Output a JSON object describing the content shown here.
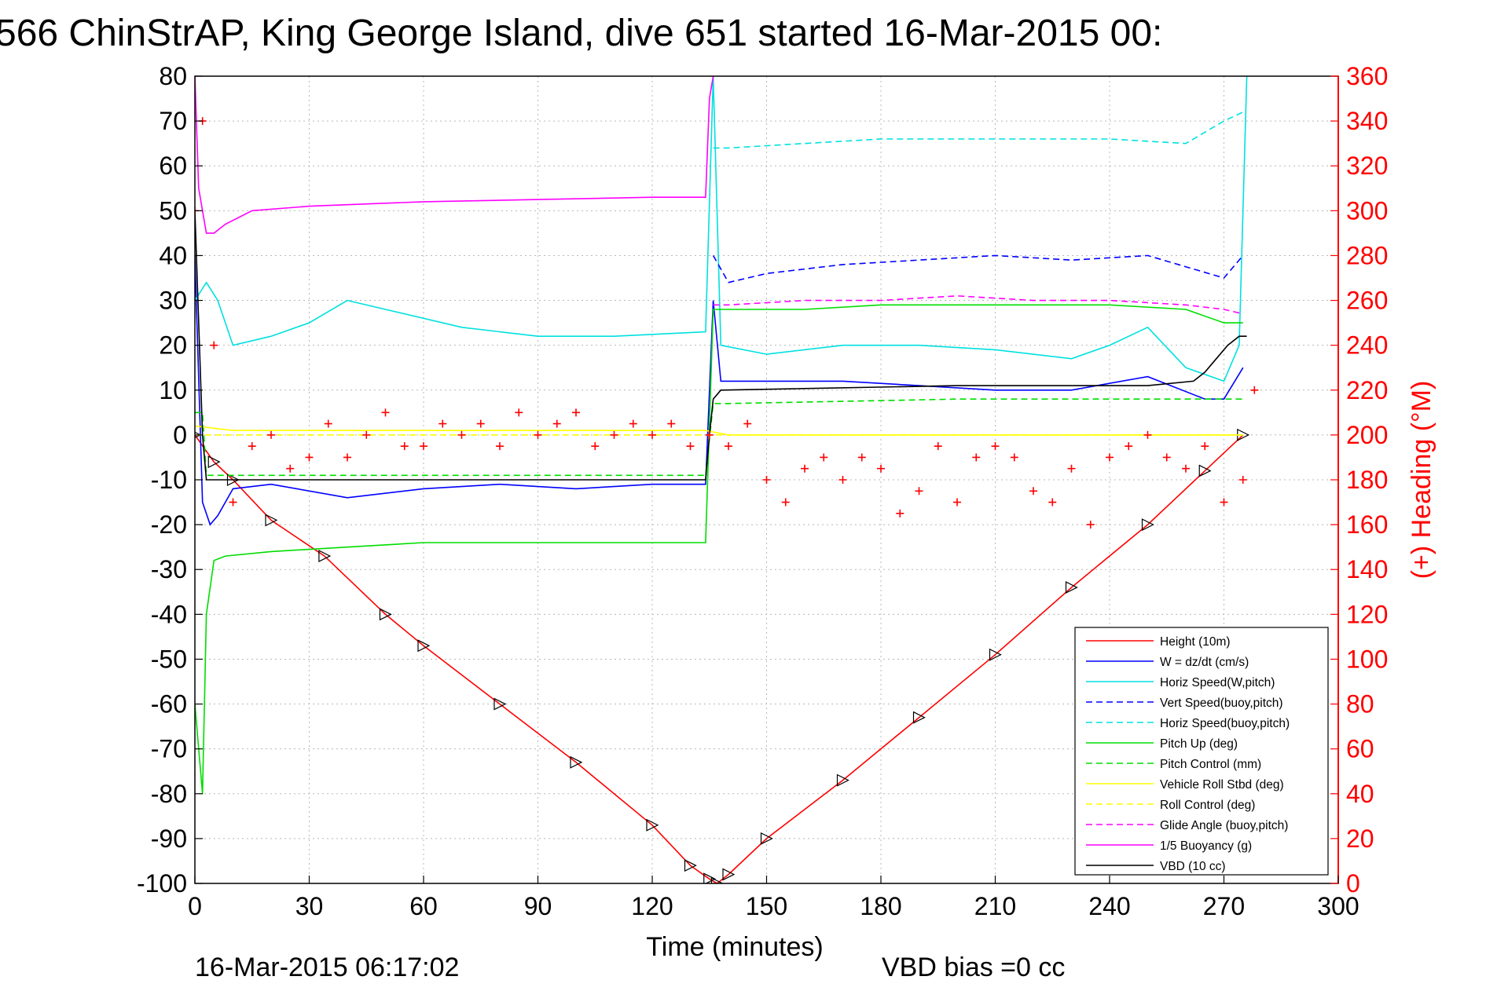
{
  "chart_data": {
    "type": "line",
    "title": "566 ChinStrAP, King George Island, dive 651 started 16-Mar-2015 00:",
    "xlabel": "Time (minutes)",
    "ylabel_right": "(+) Heading (°M)",
    "xlim": [
      0,
      300
    ],
    "ylim": [
      -100,
      80
    ],
    "ylim_right": [
      0,
      360
    ],
    "x_ticks": [
      0,
      30,
      60,
      90,
      120,
      150,
      180,
      210,
      240,
      270,
      300
    ],
    "y_ticks": [
      80,
      70,
      60,
      50,
      40,
      30,
      20,
      10,
      0,
      -10,
      -20,
      -30,
      -40,
      -50,
      -60,
      -70,
      -80,
      -90,
      -100
    ],
    "y_ticks_right": [
      360,
      340,
      320,
      300,
      280,
      260,
      240,
      220,
      200,
      180,
      160,
      140,
      120,
      100,
      80,
      60,
      40,
      20,
      0
    ],
    "grid": true,
    "legend_position": "bottom-right",
    "footer_left": "16-Mar-2015 06:17:02",
    "footer_right": "VBD bias =0 cc",
    "series": [
      {
        "name": "Height (10m)",
        "color": "#ff0000",
        "style": "solid",
        "markers": "triangle",
        "x": [
          0,
          5,
          10,
          20,
          34,
          50,
          60,
          80,
          100,
          120,
          130,
          135,
          137,
          140,
          150,
          170,
          190,
          210,
          230,
          250,
          265,
          275
        ],
        "y": [
          0,
          -6,
          -10,
          -19,
          -27,
          -40,
          -47,
          -60,
          -73,
          -87,
          -96,
          -99,
          -100,
          -98,
          -90,
          -77,
          -63,
          -49,
          -34,
          -20,
          -8,
          0
        ]
      },
      {
        "name": "W = dz/dt (cm/s)",
        "color": "#0000ff",
        "style": "solid",
        "x": [
          0,
          2,
          4,
          6,
          10,
          20,
          40,
          60,
          80,
          100,
          120,
          134,
          136,
          138,
          150,
          170,
          190,
          210,
          230,
          250,
          265,
          270,
          275
        ],
        "y": [
          40,
          -15,
          -20,
          -18,
          -12,
          -11,
          -14,
          -12,
          -11,
          -12,
          -11,
          -11,
          30,
          12,
          12,
          12,
          11,
          10,
          10,
          13,
          8,
          8,
          15
        ]
      },
      {
        "name": "Horiz Speed(W,pitch)",
        "color": "#00e0e0",
        "style": "solid",
        "x": [
          0,
          3,
          6,
          10,
          20,
          30,
          40,
          50,
          70,
          90,
          110,
          134,
          136,
          138,
          150,
          170,
          190,
          210,
          230,
          240,
          250,
          260,
          270,
          274,
          276
        ],
        "y": [
          30,
          34,
          30,
          20,
          22,
          25,
          30,
          28,
          24,
          22,
          22,
          23,
          80,
          20,
          18,
          20,
          20,
          19,
          17,
          20,
          24,
          15,
          12,
          20,
          80
        ]
      },
      {
        "name": "Vert Speed(buoy,pitch)",
        "color": "#0000ff",
        "style": "dashed",
        "x": [
          136,
          140,
          150,
          170,
          190,
          210,
          230,
          250,
          270,
          275
        ],
        "y": [
          40,
          34,
          36,
          38,
          39,
          40,
          39,
          40,
          35,
          40
        ]
      },
      {
        "name": "Horiz Speed(buoy,pitch)",
        "color": "#00e0e0",
        "style": "dashed",
        "x": [
          136,
          140,
          160,
          180,
          200,
          220,
          240,
          260,
          270,
          275
        ],
        "y": [
          64,
          64,
          65,
          66,
          66,
          66,
          66,
          65,
          70,
          72
        ]
      },
      {
        "name": "Pitch Up (deg)",
        "color": "#00dd00",
        "style": "solid",
        "x": [
          0,
          2,
          3,
          5,
          8,
          20,
          40,
          60,
          80,
          100,
          120,
          134,
          136,
          140,
          160,
          180,
          200,
          220,
          240,
          260,
          270,
          275
        ],
        "y": [
          -60,
          -80,
          -40,
          -28,
          -27,
          -26,
          -25,
          -24,
          -24,
          -24,
          -24,
          -24,
          28,
          28,
          28,
          29,
          29,
          29,
          29,
          28,
          25,
          25
        ]
      },
      {
        "name": "Pitch Control (mm)",
        "color": "#00dd00",
        "style": "dashed",
        "x": [
          0,
          2,
          3,
          10,
          50,
          90,
          134,
          136,
          140,
          170,
          200,
          230,
          260,
          275
        ],
        "y": [
          5,
          5,
          -9,
          -9,
          -9,
          -9,
          -9,
          7,
          7,
          7.5,
          8,
          8,
          8,
          8
        ]
      },
      {
        "name": "Vehicle Roll Stbd (deg)",
        "color": "#ffff00",
        "style": "solid",
        "x": [
          0,
          10,
          40,
          70,
          100,
          134,
          140,
          170,
          200,
          230,
          260,
          275
        ],
        "y": [
          2,
          1,
          1,
          1,
          1,
          1,
          0,
          0,
          0,
          0,
          0,
          0
        ]
      },
      {
        "name": "Roll Control (deg)",
        "color": "#ffff00",
        "style": "dashed",
        "x": [
          0,
          10,
          40,
          70,
          100,
          134,
          140,
          170,
          200,
          230,
          260,
          275
        ],
        "y": [
          0,
          0,
          0,
          0,
          0,
          0,
          0,
          0,
          0,
          0,
          0,
          0
        ]
      },
      {
        "name": "Glide Angle (buoy,pitch)",
        "color": "#ff00ff",
        "style": "dashed",
        "x": [
          136,
          140,
          160,
          180,
          200,
          220,
          240,
          260,
          270,
          275
        ],
        "y": [
          29,
          29,
          30,
          30,
          31,
          30,
          30,
          29,
          28,
          27
        ]
      },
      {
        "name": "1/5 Buoyancy (g)",
        "color": "#ff00ff",
        "style": "solid",
        "x": [
          0,
          1,
          3,
          5,
          8,
          15,
          30,
          60,
          90,
          120,
          134,
          135,
          136
        ],
        "y": [
          80,
          55,
          45,
          45,
          47,
          50,
          51,
          52,
          52.5,
          53,
          53,
          75,
          80
        ]
      },
      {
        "name": "VBD (10 cc)",
        "color": "#000000",
        "style": "solid",
        "x": [
          0,
          2,
          3,
          134,
          135,
          136,
          138,
          200,
          250,
          262,
          265,
          268,
          271,
          274,
          276
        ],
        "y": [
          50,
          0,
          -10,
          -10,
          0,
          8,
          10,
          11,
          11,
          12,
          14,
          17,
          20,
          22,
          22
        ]
      },
      {
        "name": "(+) Heading (°M)",
        "axis": "right",
        "color": "#ff0000",
        "style": "markers",
        "marker": "+",
        "x": [
          0,
          2,
          5,
          10,
          15,
          20,
          25,
          30,
          35,
          40,
          45,
          50,
          55,
          60,
          65,
          70,
          75,
          80,
          85,
          90,
          95,
          100,
          105,
          110,
          115,
          120,
          125,
          130,
          135,
          140,
          145,
          150,
          155,
          160,
          165,
          170,
          175,
          180,
          185,
          190,
          195,
          200,
          205,
          210,
          215,
          220,
          225,
          230,
          235,
          240,
          245,
          250,
          255,
          260,
          265,
          270,
          275,
          278
        ],
        "y": [
          300,
          340,
          240,
          170,
          195,
          200,
          185,
          190,
          205,
          190,
          200,
          210,
          195,
          195,
          205,
          200,
          205,
          195,
          210,
          200,
          205,
          210,
          195,
          200,
          205,
          200,
          205,
          195,
          200,
          195,
          205,
          180,
          170,
          185,
          190,
          180,
          190,
          185,
          165,
          175,
          195,
          170,
          190,
          195,
          190,
          175,
          170,
          185,
          160,
          190,
          195,
          200,
          190,
          185,
          195,
          170,
          180,
          220
        ]
      }
    ]
  }
}
